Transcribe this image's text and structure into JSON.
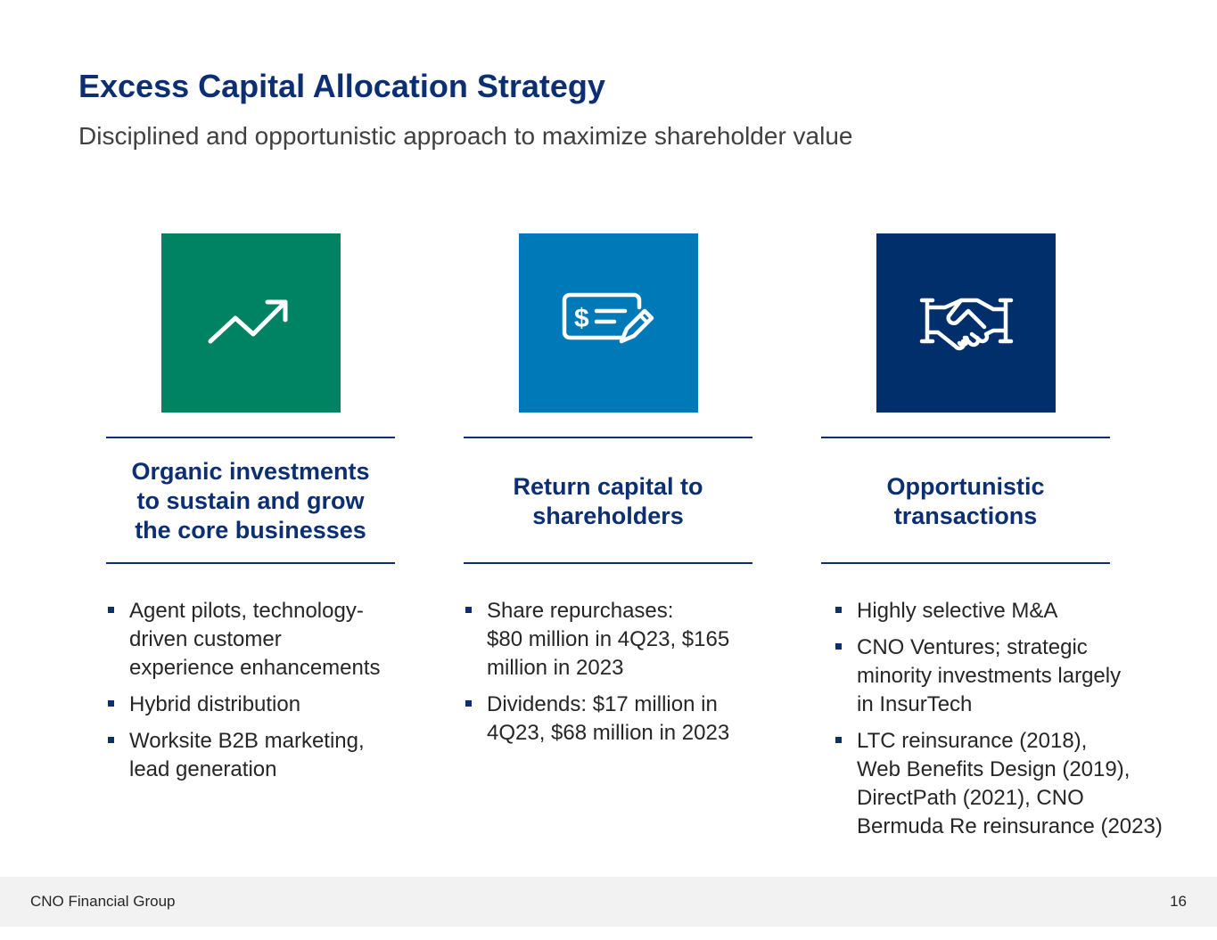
{
  "title": "Excess Capital Allocation Strategy",
  "subtitle": "Disciplined and opportunistic approach to maximize shareholder value",
  "colors": {
    "title": "#0c2f73",
    "green_tile": "#008363",
    "blue_tile": "#0079b8",
    "navy_tile": "#002f6c"
  },
  "columns": [
    {
      "icon": "trend-up-icon",
      "heading_lines": [
        "Organic investments",
        "to sustain and grow",
        "the core businesses"
      ],
      "bullets": [
        "Agent pilots, technology-\ndriven customer\nexperience enhancements",
        "Hybrid distribution",
        "Worksite B2B marketing,\nlead generation"
      ]
    },
    {
      "icon": "check-dollar-pen-icon",
      "heading_lines": [
        "Return capital to",
        "shareholders"
      ],
      "bullets": [
        "Share repurchases:\n$80 million in 4Q23, $165\nmillion in 2023",
        "Dividends: $17 million in\n4Q23, $68 million in 2023"
      ]
    },
    {
      "icon": "handshake-icon",
      "heading_lines": [
        "Opportunistic",
        "transactions"
      ],
      "bullets": [
        "Highly selective M&A",
        "CNO Ventures; strategic\nminority investments largely\nin InsurTech",
        "LTC reinsurance (2018),\nWeb Benefits Design (2019),\nDirectPath (2021), CNO\nBermuda Re reinsurance (2023)"
      ]
    }
  ],
  "footer": {
    "company": "CNO Financial Group",
    "page_number": "16"
  }
}
